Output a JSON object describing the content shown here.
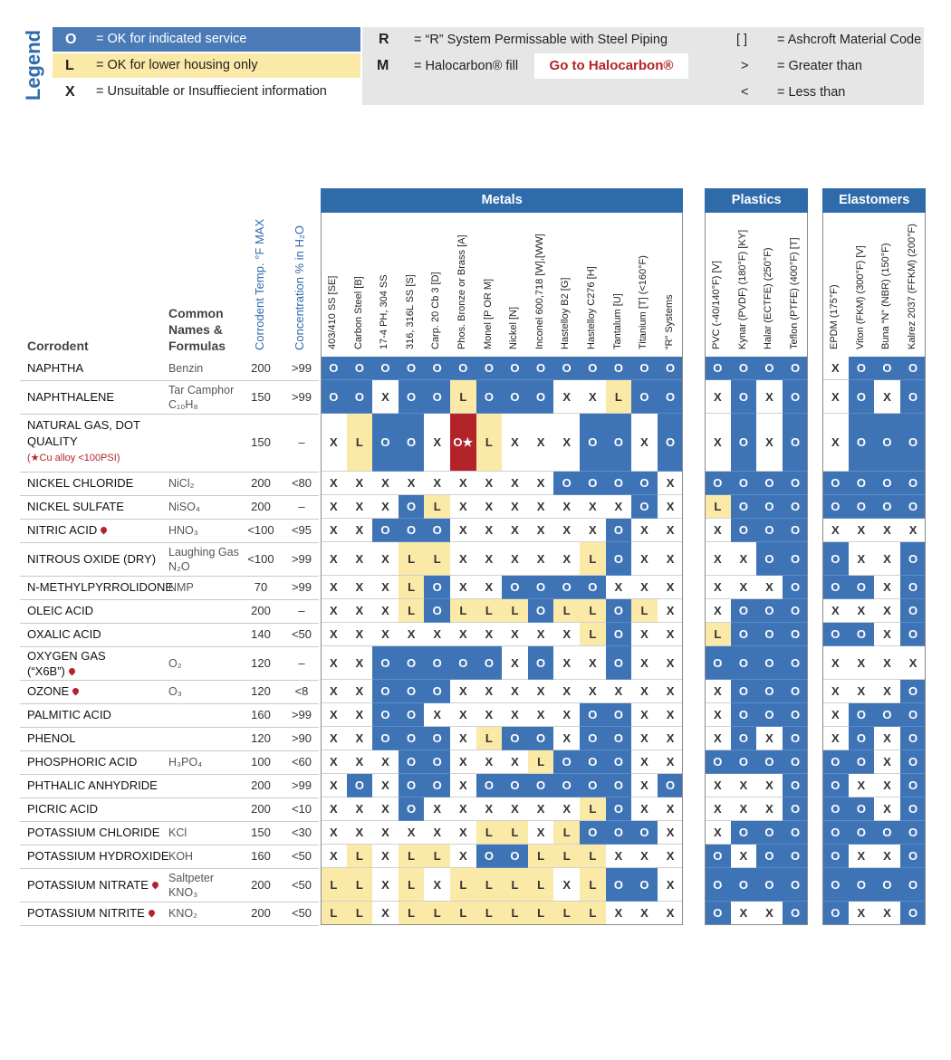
{
  "legend": {
    "title": "Legend",
    "o_sym": "O",
    "o_text": "= OK for indicated service",
    "l_sym": "L",
    "l_text": "= OK for lower housing only",
    "x_sym": "X",
    "x_text": "= Unsuitable or Insuffiecient information",
    "r_sym": "R",
    "r_text": "= “R” System Permissable with Steel Piping",
    "m_sym": "M",
    "m_text": "= Halocarbon® fill",
    "halocarbon_button": "Go to Halocarbon®",
    "bracket_sym": "[ ]",
    "bracket_text": "= Ashcroft Material Code",
    "gt_sym": ">",
    "gt_text": "= Greater than",
    "lt_sym": "<",
    "lt_text": "= Less than"
  },
  "colors": {
    "ok": "#3e73b5",
    "lower": "#fbe9a8",
    "header": "#2f6bab",
    "special": "#b4232a"
  },
  "groups": {
    "metals": "Metals",
    "plastics": "Plastics",
    "elastomers": "Elastomers"
  },
  "headers": {
    "corrodent": "Corrodent",
    "common": [
      "Common",
      "Names &",
      "Formulas"
    ],
    "temp": "Corrodent Temp. °F MAX",
    "conc": "Concentration % in H₂O"
  },
  "columns": [
    "403/410 SS [SE]",
    "Carbon Steel [B]",
    "17-4 PH, 304 SS",
    "316, 316L SS [S]",
    "Carp. 20 Cb 3 [D]",
    "Phos. Bronze or Brass [A]",
    "Monel [P OR M]",
    "Nickel [N]",
    "Inconel 600,718 [W],[WW]",
    "Hastelloy B2 [G]",
    "Hastelloy C276 [H]",
    "Tantalum [U]",
    "Titanium [T] (<160°F)",
    "“R” Systems",
    "PVC (-40/140°F) [V]",
    "Kynar (PVDF) (180°F) [KY]",
    "Halar (ECTFE) (250°F)",
    "Teflon (PTFE) (400°F) [T]",
    "EPDM (175°F)",
    "Viton (FKM) (300°F) [V]",
    "Buna “N” (NBR) (150°F)",
    "Kalrez 2037 (FFKM) (200°F)"
  ],
  "rows": [
    {
      "name": "NAPHTHA",
      "formula": "Benzin",
      "temp": "200",
      "conc": ">99",
      "cells": "OOOOOOOOOOOOOO|OOOO|XOOO"
    },
    {
      "name": "NAPHTHALENE",
      "formula": "Tar Camphor C₁₀H₈",
      "temp": "150",
      "conc": ">99",
      "cells": "OOXOOLOOOXXLOO|XOXO|XOXO"
    },
    {
      "name": "NATURAL GAS, DOT QUALITY",
      "note": "(★Cu alloy <100PSI)",
      "formula": "",
      "temp": "150",
      "conc": "–",
      "cells": "XLOOXRLXXXOOXO|XOXO|XOOO"
    },
    {
      "name": "NICKEL CHLORIDE",
      "formula": "NiCl₂",
      "temp": "200",
      "conc": "<80",
      "cells": "XXXXXXXXXOOOOX|OOOO|OOOO"
    },
    {
      "name": "NICKEL SULFATE",
      "formula": "NiSO₄",
      "temp": "200",
      "conc": "–",
      "cells": "XXXOLXXXXXXXOX|LOOO|OOOO"
    },
    {
      "name": "NITRIC ACID",
      "flame": true,
      "formula": "HNO₃",
      "temp": "<100",
      "conc": "<95",
      "cells": "XXOOOXXXXXXOXX|XOOO|XXXX"
    },
    {
      "name": "NITROUS OXIDE (DRY)",
      "formula": "Laughing Gas N₂O",
      "temp": "<100",
      "conc": ">99",
      "cells": "XXXLLXXXXXLOXX|XXOO|OXXO"
    },
    {
      "name": "N-METHYLPYRROLIDONE",
      "formula": "NMP",
      "temp": "70",
      "conc": ">99",
      "cells": "XXXLOXXOOOOXXX|XXXO|OOXO"
    },
    {
      "name": "OLEIC ACID",
      "formula": "",
      "temp": "200",
      "conc": "–",
      "cells": "XXXLOLLLOLLOLX|XOOO|XXXO"
    },
    {
      "name": "OXALIC ACID",
      "formula": "",
      "temp": "140",
      "conc": "<50",
      "cells": "XXXXXXXXXXLOXX|LOOO|OOXO"
    },
    {
      "name": "OXYGEN GAS (“X6B”)",
      "flame": true,
      "formula": "O₂",
      "temp": "120",
      "conc": "–",
      "cells": "XXOOOOOXOXXOXX|OOOO|XXXX"
    },
    {
      "name": "OZONE",
      "flame": true,
      "formula": "O₃",
      "temp": "120",
      "conc": "<8",
      "cells": "XXOOOXXXXXXXXX|XOOO|XXXO"
    },
    {
      "name": "PALMITIC ACID",
      "formula": "",
      "temp": "160",
      "conc": ">99",
      "cells": "XXOOXXXXXXOOXX|XOOO|XOOO"
    },
    {
      "name": "PHENOL",
      "formula": "",
      "temp": "120",
      "conc": ">90",
      "cells": "XXOOOXLOOXOOXX|XOXO|XOXO"
    },
    {
      "name": "PHOSPHORIC ACID",
      "formula": "H₃PO₄",
      "temp": "100",
      "conc": "<60",
      "cells": "XXXOOXXXLOOOXX|OOOO|OOXO"
    },
    {
      "name": "PHTHALIC ANHYDRIDE",
      "formula": "",
      "temp": "200",
      "conc": ">99",
      "cells": "XOXOOXOOOOOOXO|XXXO|OXXO"
    },
    {
      "name": "PICRIC ACID",
      "formula": "",
      "temp": "200",
      "conc": "<10",
      "cells": "XXXOXXXXXXLOXX|XXXO|OOXO"
    },
    {
      "name": "POTASSIUM CHLORIDE",
      "formula": "KCl",
      "temp": "150",
      "conc": "<30",
      "cells": "XXXXXXLLXLOOOX|XOOO|OOOO"
    },
    {
      "name": "POTASSIUM HYDROXIDE",
      "formula": "KOH",
      "temp": "160",
      "conc": "<50",
      "cells": "XLXLLXOOLLLXXX|OXOO|OXXO"
    },
    {
      "name": "POTASSIUM NITRATE",
      "flame": true,
      "formula": "Saltpeter KNO₃",
      "temp": "200",
      "conc": "<50",
      "cells": "LLXLXLLLLXLOOX|OOOO|OOOO"
    },
    {
      "name": "POTASSIUM NITRITE",
      "flame": true,
      "formula": "KNO₂",
      "temp": "200",
      "conc": "<50",
      "cells": "LLXLLLLLLLLXXX|OXXO|OXXO"
    }
  ]
}
